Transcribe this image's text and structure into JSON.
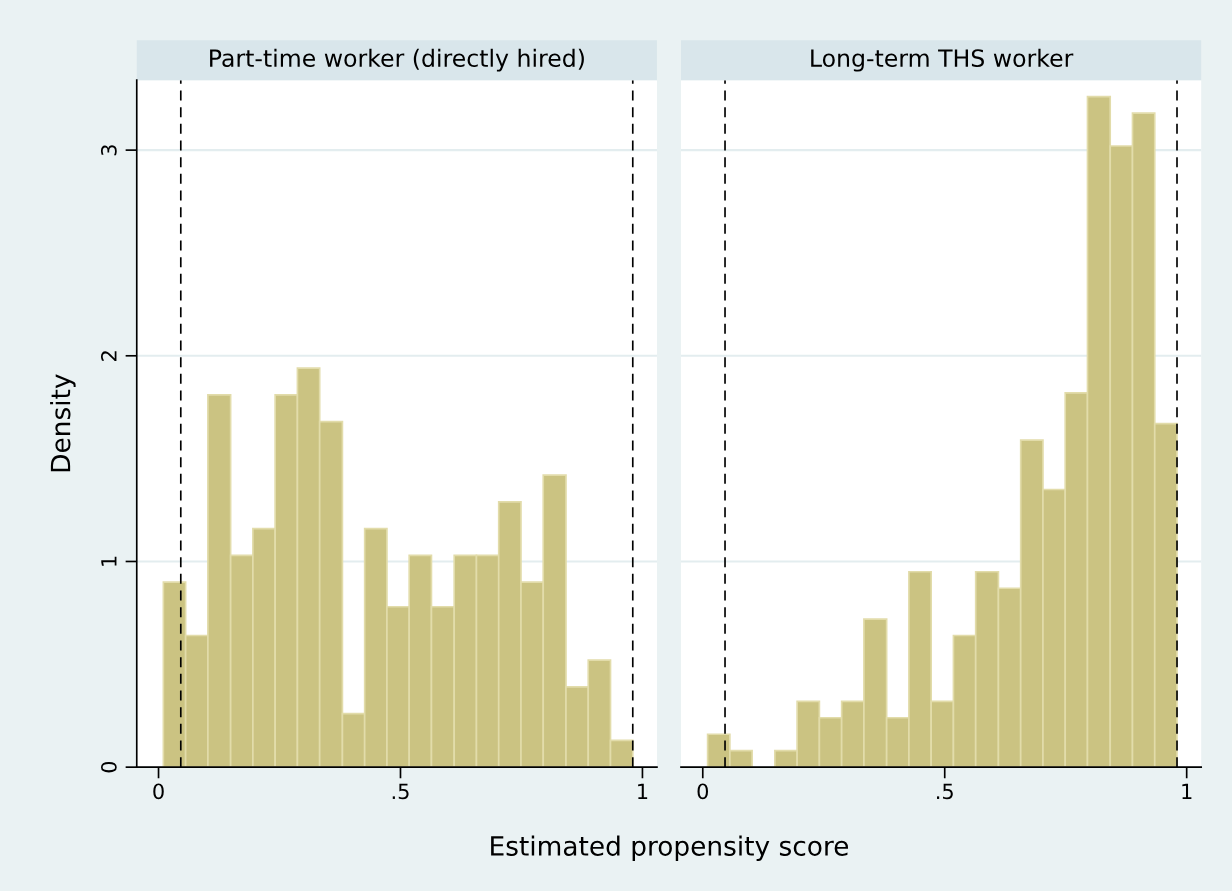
{
  "chart_data": [
    {
      "type": "histogram",
      "title": "Part-time worker (directly hired)",
      "ylabel": "Density",
      "xlabel": "Estimated propensity score",
      "bins": [
        0.01,
        0.056,
        0.102,
        0.149,
        0.195,
        0.241,
        0.287,
        0.333,
        0.38,
        0.426,
        0.472,
        0.518,
        0.564,
        0.611,
        0.657,
        0.703,
        0.749,
        0.795,
        0.842,
        0.888,
        0.934,
        0.98
      ],
      "values": [
        0.9,
        0.64,
        1.81,
        1.03,
        1.16,
        1.81,
        1.94,
        1.68,
        0.26,
        1.16,
        0.78,
        1.03,
        0.78,
        1.03,
        1.03,
        1.29,
        0.9,
        1.42,
        0.39,
        0.52,
        0.13
      ],
      "color": "#cbc382",
      "xlim": [
        -0.045,
        1.03
      ],
      "xticks": [
        0,
        {
          "value": 0.5,
          "label": ".5"
        },
        1
      ],
      "ylim": [
        0,
        3.34
      ],
      "yticks": [
        0,
        1,
        2,
        3
      ],
      "grid": "y",
      "ref_lines": [
        {
          "axis": "x",
          "value": 0.046,
          "line_style": "dashed",
          "color": "#000000"
        },
        {
          "axis": "x",
          "value": 0.98,
          "line_style": "dashed",
          "color": "#000000"
        }
      ]
    },
    {
      "type": "histogram",
      "title": "Long-term THS worker",
      "bins": [
        0.01,
        0.056,
        0.102,
        0.149,
        0.195,
        0.241,
        0.287,
        0.333,
        0.38,
        0.426,
        0.472,
        0.518,
        0.564,
        0.611,
        0.657,
        0.703,
        0.749,
        0.795,
        0.842,
        0.888,
        0.934,
        0.98
      ],
      "values": [
        0.16,
        0.08,
        0,
        0.08,
        0.32,
        0.24,
        0.32,
        0.72,
        0.24,
        0.95,
        0.32,
        0.64,
        0.95,
        0.87,
        1.59,
        1.35,
        1.82,
        3.26,
        3.02,
        3.18,
        1.67
      ],
      "color": "#cbc382",
      "xlim": [
        -0.045,
        1.03
      ],
      "xticks": [
        0,
        {
          "value": 0.5,
          "label": ".5"
        },
        1
      ],
      "ylim": [
        0,
        3.34
      ],
      "yticks": [
        0,
        1,
        2,
        3
      ],
      "grid": "y",
      "tick_labels": "x",
      "ref_lines": [
        {
          "axis": "x",
          "value": 0.046,
          "line_style": "dashed",
          "color": "#000000"
        },
        {
          "axis": "x",
          "value": 0.98,
          "line_style": "dashed",
          "color": "#000000"
        }
      ]
    }
  ]
}
